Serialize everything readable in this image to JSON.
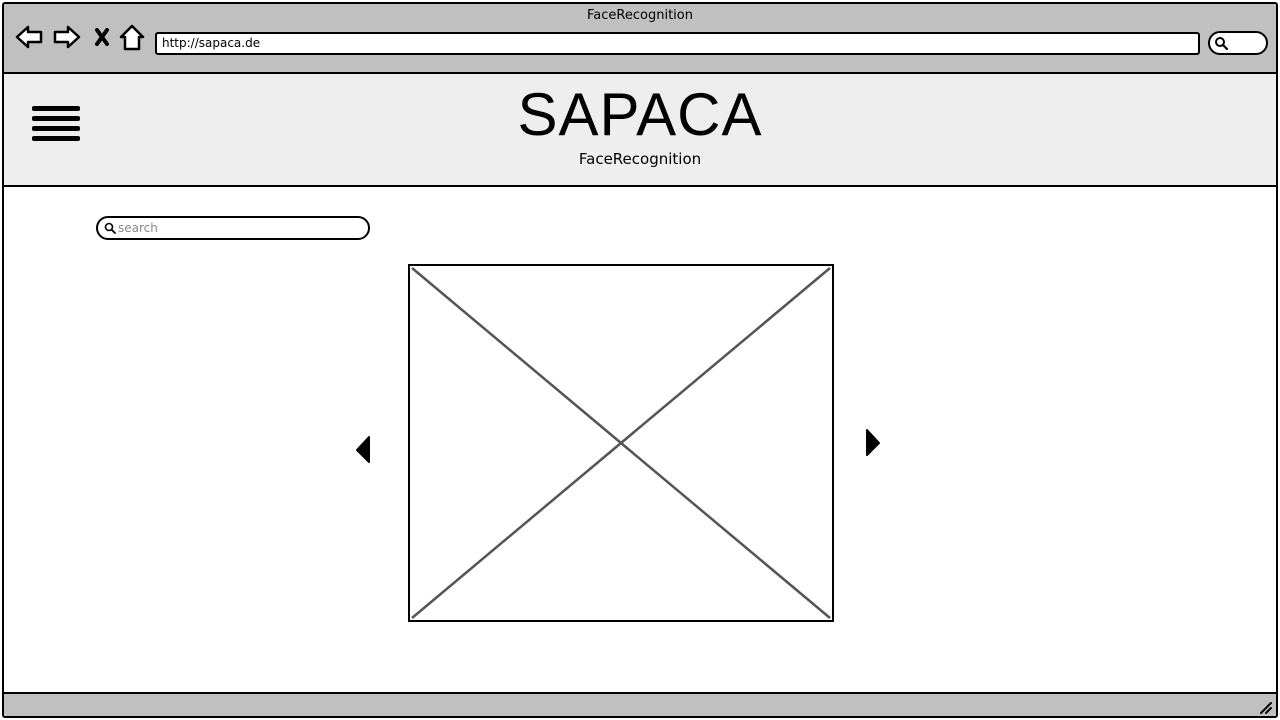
{
  "browser": {
    "window_title": "FaceRecognition",
    "url": "http://sapaca.de"
  },
  "header": {
    "brand": "SAPACA",
    "subtitle": "FaceRecognition"
  },
  "search": {
    "placeholder": "search"
  }
}
